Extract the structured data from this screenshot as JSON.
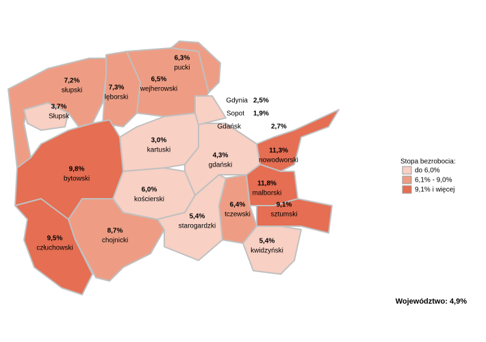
{
  "regions": [
    {
      "name": "słupski",
      "value": "7,2%",
      "color": "#ee9d84"
    },
    {
      "name": "Słupsk",
      "value": "3,7%",
      "color": "#f8d0c4"
    },
    {
      "name": "lęborski",
      "value": "7,3%",
      "color": "#ee9d84"
    },
    {
      "name": "wejherowski",
      "value": "6,5%",
      "color": "#ee9d84"
    },
    {
      "name": "pucki",
      "value": "6,3%",
      "color": "#ee9d84"
    },
    {
      "name": "bytowski",
      "value": "9,8%",
      "color": "#e56e53"
    },
    {
      "name": "człuchowski",
      "value": "9,5%",
      "color": "#e56e53"
    },
    {
      "name": "chojnicki",
      "value": "8,7%",
      "color": "#ee9d84"
    },
    {
      "name": "kartuski",
      "value": "3,0%",
      "color": "#f8d0c4"
    },
    {
      "name": "kościerski",
      "value": "6,0%",
      "color": "#f8d0c4"
    },
    {
      "name": "gdański",
      "value": "4,3%",
      "color": "#f8d0c4"
    },
    {
      "name": "starogardzki",
      "value": "5,4%",
      "color": "#f8d0c4"
    },
    {
      "name": "tczewski",
      "value": "6,4%",
      "color": "#ee9d84"
    },
    {
      "name": "nowodworski",
      "value": "11,3%",
      "color": "#e56e53"
    },
    {
      "name": "malborski",
      "value": "11,8%",
      "color": "#e56e53"
    },
    {
      "name": "sztumski",
      "value": "9,1%",
      "color": "#e56e53"
    },
    {
      "name": "kwidzyński",
      "value": "5,4%",
      "color": "#f8d0c4"
    }
  ],
  "cities": [
    {
      "name": "Gdynia",
      "value": "2,5%"
    },
    {
      "name": "Sopot",
      "value": "1,9%"
    },
    {
      "name": "Gdańsk",
      "value": "2,7%"
    }
  ],
  "cities_color": "#f8d0c4",
  "legend": {
    "title": "Stopa bezrobocia:",
    "items": [
      {
        "label": "do 6,0%",
        "color": "#f8d0c4"
      },
      {
        "label": "6,1% - 9,0%",
        "color": "#ee9d84"
      },
      {
        "label": "9,1% i więcej",
        "color": "#e56e53"
      }
    ]
  },
  "footer": "Województwo: 4,9%"
}
